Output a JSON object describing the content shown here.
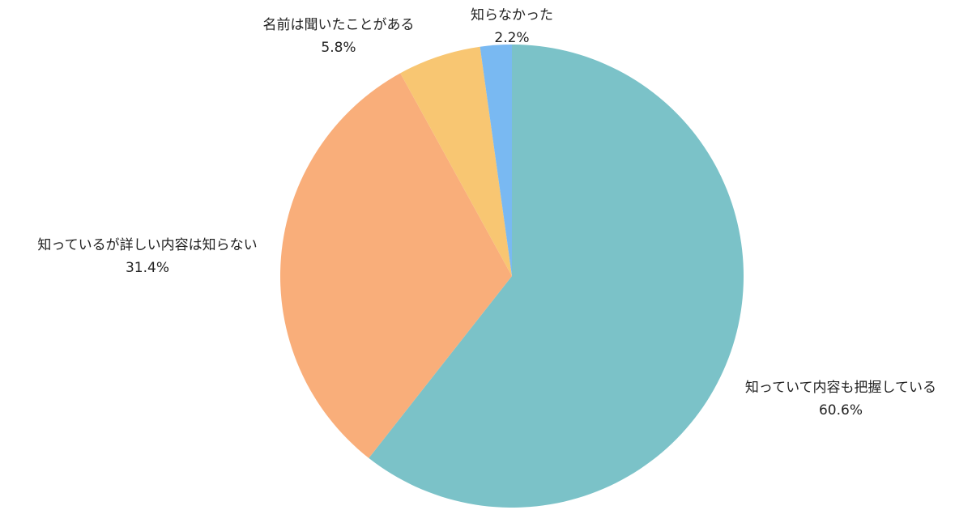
{
  "chart_data": {
    "type": "pie",
    "start": "top",
    "direction": "clockwise",
    "slices": [
      {
        "label": "知っていて内容も把握している",
        "value": 60.6,
        "value_label": "60.6%",
        "color": "#7BC2C8"
      },
      {
        "label": "知っているが詳しい内容は知らない",
        "value": 31.4,
        "value_label": "31.4%",
        "color": "#F9AE7A"
      },
      {
        "label": "名前は聞いたことがある",
        "value": 5.8,
        "value_label": "5.8%",
        "color": "#F8C672"
      },
      {
        "label": "知らなかった",
        "value": 2.2,
        "value_label": "2.2%",
        "color": "#79B9F2"
      }
    ]
  }
}
